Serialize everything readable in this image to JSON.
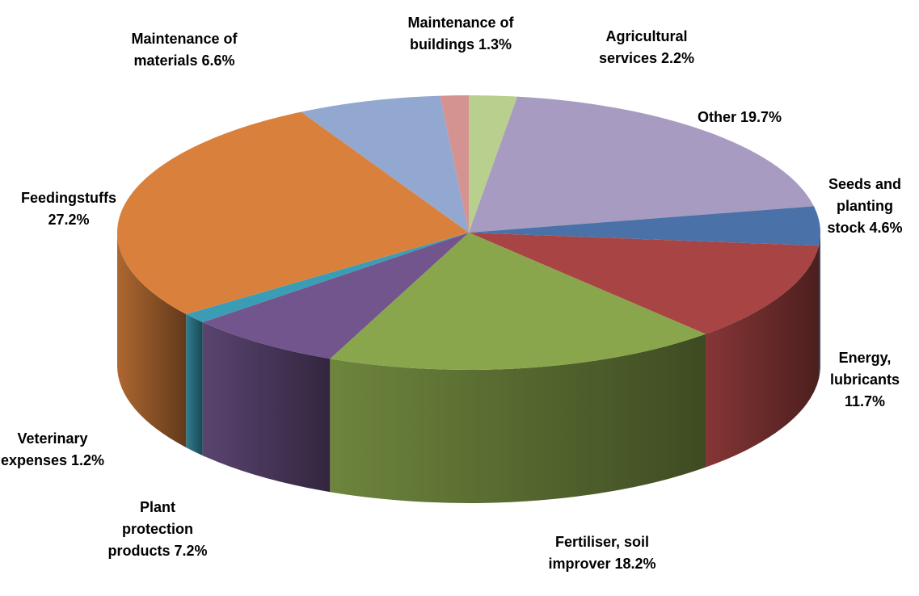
{
  "chart_data": {
    "type": "pie3d",
    "categories": [
      "Agricultural services",
      "Other",
      "Seeds and planting stock",
      "Energy, lubricants",
      "Fertiliser, soil improver",
      "Plant protection products",
      "Veterinary expenses",
      "Feedingstuffs",
      "Maintenance of materials",
      "Maintenance of buildings"
    ],
    "values": [
      2.2,
      19.7,
      4.6,
      11.7,
      18.2,
      7.2,
      1.2,
      27.2,
      6.6,
      1.3
    ],
    "value_labels": [
      "2.2%",
      "19.7%",
      "4.6%",
      "11.7%",
      "18.2%",
      "7.2%",
      "1.2%",
      "27.2%",
      "6.6%",
      "1.3%"
    ],
    "colors": [
      "#b9cf8e",
      "#a79bc1",
      "#4a72a8",
      "#a84443",
      "#8aa64c",
      "#71558c",
      "#3b9db5",
      "#d9813c",
      "#93a8d0",
      "#d49290"
    ]
  }
}
